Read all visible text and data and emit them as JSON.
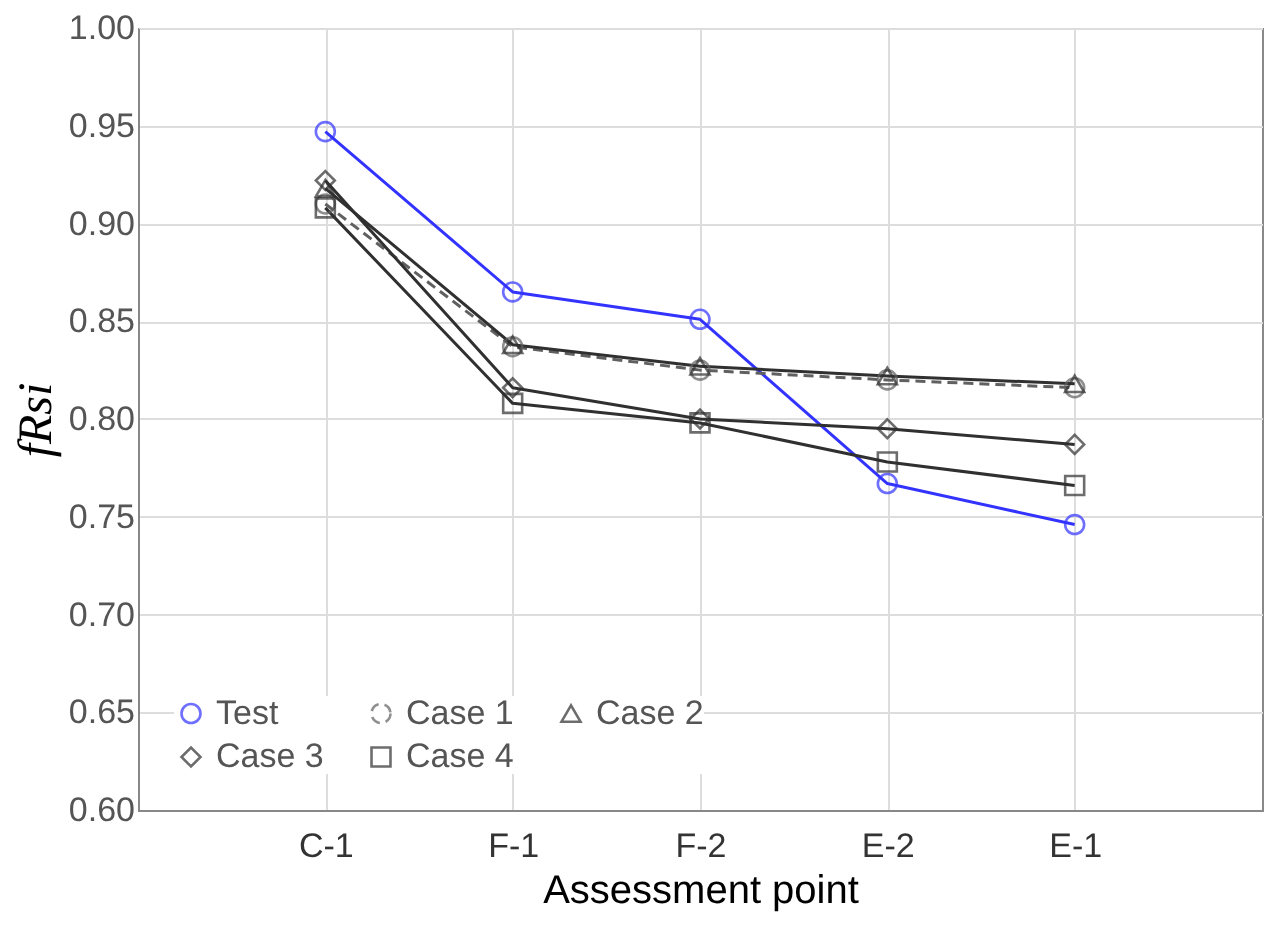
{
  "chart_data": {
    "type": "line",
    "xlabel": "Assessment point",
    "ylabel": "fRsi",
    "categories": [
      "C-1",
      "F-1",
      "F-2",
      "E-2",
      "E-1"
    ],
    "ylim": [
      0.6,
      1.0
    ],
    "yticks": [
      {
        "value": 0.6,
        "label": "0.60"
      },
      {
        "value": 0.65,
        "label": "0.65"
      },
      {
        "value": 0.7,
        "label": "0.70"
      },
      {
        "value": 0.75,
        "label": "0.75"
      },
      {
        "value": 0.8,
        "label": "0.80"
      },
      {
        "value": 0.85,
        "label": "0.85"
      },
      {
        "value": 0.9,
        "label": "0.90"
      },
      {
        "value": 0.95,
        "label": "0.95"
      },
      {
        "value": 1.0,
        "label": "1.00"
      }
    ],
    "grid": true,
    "legend": "bottom left",
    "series": [
      {
        "name": "Test",
        "color": "#3333ff",
        "marker": "circle",
        "line_style": "solid",
        "values": [
          0.947,
          0.865,
          0.851,
          0.767,
          0.746
        ]
      },
      {
        "name": "Case 1",
        "color": "#606060",
        "marker": "circle",
        "line_style": "dashed",
        "values": [
          0.91,
          0.837,
          0.825,
          0.82,
          0.816
        ]
      },
      {
        "name": "Case 2",
        "color": "#303030",
        "marker": "triangle",
        "line_style": "solid",
        "values": [
          0.918,
          0.838,
          0.827,
          0.822,
          0.818
        ]
      },
      {
        "name": "Case 3",
        "color": "#303030",
        "marker": "diamond",
        "line_style": "solid",
        "values": [
          0.922,
          0.816,
          0.8,
          0.795,
          0.787
        ]
      },
      {
        "name": "Case 4",
        "color": "#303030",
        "marker": "square",
        "line_style": "solid",
        "values": [
          0.908,
          0.808,
          0.798,
          0.778,
          0.766
        ]
      }
    ]
  }
}
